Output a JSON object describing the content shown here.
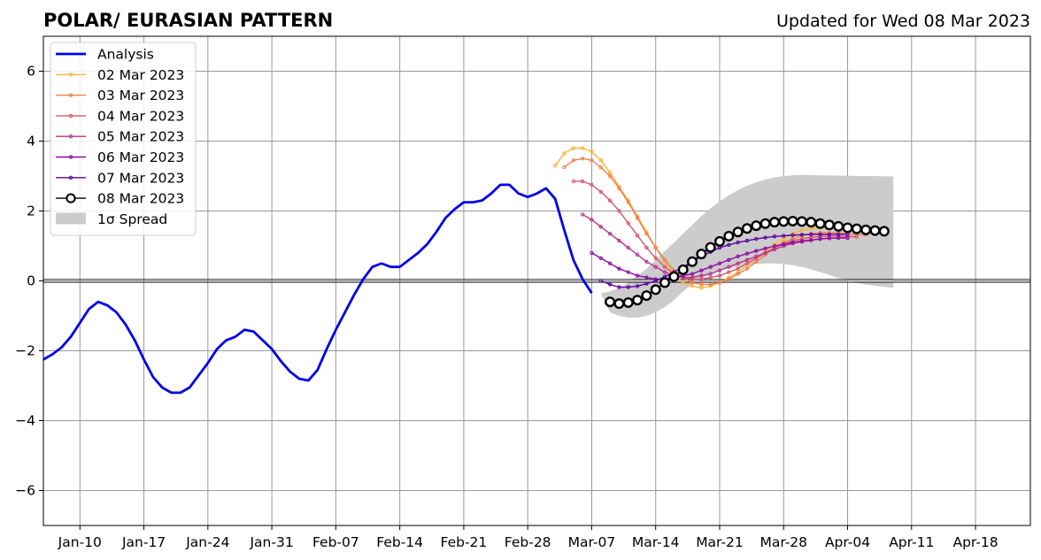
{
  "chart_data": {
    "type": "line",
    "title": "POLAR/ EURASIAN  PATTERN",
    "subtitle": "Updated for Wed 08 Mar 2023",
    "xlabel": "",
    "ylabel": "",
    "x_range": [
      "2023-01-06",
      "2023-04-24"
    ],
    "ylim": [
      -7,
      7
    ],
    "x_ticks": [
      {
        "date": "2023-01-10",
        "label": "Jan-10"
      },
      {
        "date": "2023-01-17",
        "label": "Jan-17"
      },
      {
        "date": "2023-01-24",
        "label": "Jan-24"
      },
      {
        "date": "2023-01-31",
        "label": "Jan-31"
      },
      {
        "date": "2023-02-07",
        "label": "Feb-07"
      },
      {
        "date": "2023-02-14",
        "label": "Feb-14"
      },
      {
        "date": "2023-02-21",
        "label": "Feb-21"
      },
      {
        "date": "2023-02-28",
        "label": "Feb-28"
      },
      {
        "date": "2023-03-07",
        "label": "Mar-07"
      },
      {
        "date": "2023-03-14",
        "label": "Mar-14"
      },
      {
        "date": "2023-03-21",
        "label": "Mar-21"
      },
      {
        "date": "2023-03-28",
        "label": "Mar-28"
      },
      {
        "date": "2023-04-04",
        "label": "Apr-04"
      },
      {
        "date": "2023-04-11",
        "label": "Apr-11"
      },
      {
        "date": "2023-04-18",
        "label": "Apr-18"
      }
    ],
    "y_ticks": [
      -6,
      -4,
      -2,
      0,
      2,
      4,
      6
    ],
    "y_tick_labels": [
      "−6",
      "−4",
      "−2",
      "0",
      "2",
      "4",
      "6"
    ],
    "grid": true,
    "legend_position": "top-left",
    "colors": {
      "analysis": "#0000ee",
      "mar02": "#fcb43a",
      "mar03": "#f07f4b",
      "mar04": "#d8576b",
      "mar05": "#b8348a",
      "mar06": "#8d0ba6",
      "mar07": "#5b02a3",
      "mar08": "#000000",
      "spread": "#cccccc",
      "grid": "#999999"
    },
    "analysis": {
      "name": "Analysis",
      "start_date": "2023-01-06",
      "values": [
        -2.25,
        -2.1,
        -1.9,
        -1.6,
        -1.2,
        -0.8,
        -0.6,
        -0.7,
        -0.9,
        -1.25,
        -1.7,
        -2.25,
        -2.75,
        -3.05,
        -3.2,
        -3.2,
        -3.05,
        -2.7,
        -2.35,
        -1.95,
        -1.7,
        -1.6,
        -1.4,
        -1.45,
        -1.7,
        -1.95,
        -2.3,
        -2.6,
        -2.8,
        -2.85,
        -2.55,
        -1.95,
        -1.4,
        -0.9,
        -0.4,
        0.05,
        0.4,
        0.5,
        0.4,
        0.4,
        0.6,
        0.8,
        1.05,
        1.4,
        1.8,
        2.05,
        2.25,
        2.25,
        2.3,
        2.5,
        2.75,
        2.75,
        2.5,
        2.4,
        2.5,
        2.65,
        2.35,
        1.45,
        0.6,
        0.05,
        -0.35
      ]
    },
    "forecasts": [
      {
        "name": "02 Mar 2023",
        "start_date": "2023-03-03",
        "values": [
          3.3,
          3.65,
          3.8,
          3.8,
          3.7,
          3.45,
          3.1,
          2.7,
          2.3,
          1.85,
          1.4,
          0.95,
          0.55,
          0.2,
          -0.05,
          -0.15,
          -0.2,
          -0.15,
          -0.05,
          0.1,
          0.25,
          0.45,
          0.65,
          0.85,
          1.05,
          1.2,
          1.35,
          1.45,
          1.5,
          1.52,
          1.52,
          1.5,
          1.48,
          1.45,
          1.43
        ]
      },
      {
        "name": "03 Mar 2023",
        "start_date": "2023-03-04",
        "values": [
          3.25,
          3.45,
          3.5,
          3.45,
          3.25,
          3.0,
          2.65,
          2.25,
          1.8,
          1.35,
          0.95,
          0.6,
          0.3,
          0.1,
          -0.05,
          -0.1,
          -0.1,
          -0.05,
          0.05,
          0.2,
          0.35,
          0.55,
          0.75,
          0.95,
          1.1,
          1.2,
          1.3,
          1.35,
          1.38,
          1.38,
          1.37,
          1.35,
          1.33,
          1.32
        ]
      },
      {
        "name": "04 Mar 2023",
        "start_date": "2023-03-05",
        "values": [
          2.85,
          2.85,
          2.75,
          2.55,
          2.3,
          2.0,
          1.65,
          1.3,
          0.95,
          0.65,
          0.4,
          0.2,
          0.1,
          0.05,
          0.05,
          0.1,
          0.15,
          0.25,
          0.35,
          0.5,
          0.65,
          0.8,
          0.95,
          1.05,
          1.15,
          1.2,
          1.25,
          1.27,
          1.28,
          1.28,
          1.27,
          1.26
        ]
      },
      {
        "name": "05 Mar 2023",
        "start_date": "2023-03-06",
        "values": [
          1.9,
          1.75,
          1.55,
          1.35,
          1.15,
          0.95,
          0.75,
          0.55,
          0.4,
          0.25,
          0.15,
          0.1,
          0.1,
          0.15,
          0.2,
          0.3,
          0.4,
          0.5,
          0.6,
          0.7,
          0.8,
          0.9,
          1.0,
          1.07,
          1.12,
          1.16,
          1.2,
          1.22,
          1.23,
          1.23
        ]
      },
      {
        "name": "06 Mar 2023",
        "start_date": "2023-03-07",
        "values": [
          0.8,
          0.65,
          0.5,
          0.35,
          0.25,
          0.15,
          0.1,
          0.05,
          0.05,
          0.1,
          0.15,
          0.2,
          0.3,
          0.4,
          0.5,
          0.6,
          0.7,
          0.78,
          0.86,
          0.93,
          1.0,
          1.05,
          1.1,
          1.14,
          1.17,
          1.2,
          1.22,
          1.23,
          1.23
        ]
      },
      {
        "name": "07 Mar 2023",
        "start_date": "2023-03-08",
        "values": [
          0.0,
          -0.1,
          -0.18,
          -0.18,
          -0.15,
          -0.08,
          0.0,
          0.12,
          0.25,
          0.4,
          0.55,
          0.7,
          0.83,
          0.95,
          1.03,
          1.1,
          1.15,
          1.2,
          1.24,
          1.27,
          1.29,
          1.31,
          1.32,
          1.33,
          1.33,
          1.33,
          1.33,
          1.33
        ]
      },
      {
        "name": "08 Mar 2023",
        "start_date": "2023-03-09",
        "values": [
          -0.6,
          -0.65,
          -0.62,
          -0.55,
          -0.42,
          -0.25,
          -0.05,
          0.12,
          0.32,
          0.55,
          0.77,
          0.96,
          1.13,
          1.28,
          1.4,
          1.5,
          1.58,
          1.64,
          1.68,
          1.7,
          1.71,
          1.7,
          1.68,
          1.64,
          1.6,
          1.56,
          1.52,
          1.49,
          1.46,
          1.44,
          1.42
        ]
      }
    ],
    "spread": {
      "name": "1σ Spread",
      "start_date": "2023-03-08",
      "upper": [
        -0.35,
        -0.3,
        -0.2,
        -0.05,
        0.15,
        0.35,
        0.6,
        0.85,
        1.1,
        1.35,
        1.6,
        1.85,
        2.08,
        2.28,
        2.45,
        2.6,
        2.72,
        2.82,
        2.9,
        2.96,
        3.0,
        3.02,
        3.03,
        3.03,
        3.02,
        3.02,
        3.01,
        3.01,
        3.0,
        3.0,
        3.0,
        2.99,
        2.99
      ],
      "lower": [
        -0.35,
        -0.9,
        -1.0,
        -1.05,
        -1.05,
        -1.0,
        -0.9,
        -0.75,
        -0.55,
        -0.3,
        -0.1,
        0.05,
        0.2,
        0.3,
        0.35,
        0.4,
        0.45,
        0.48,
        0.5,
        0.5,
        0.48,
        0.45,
        0.4,
        0.33,
        0.25,
        0.17,
        0.08,
        0.0,
        -0.05,
        -0.1,
        -0.14,
        -0.17,
        -0.2
      ]
    }
  }
}
